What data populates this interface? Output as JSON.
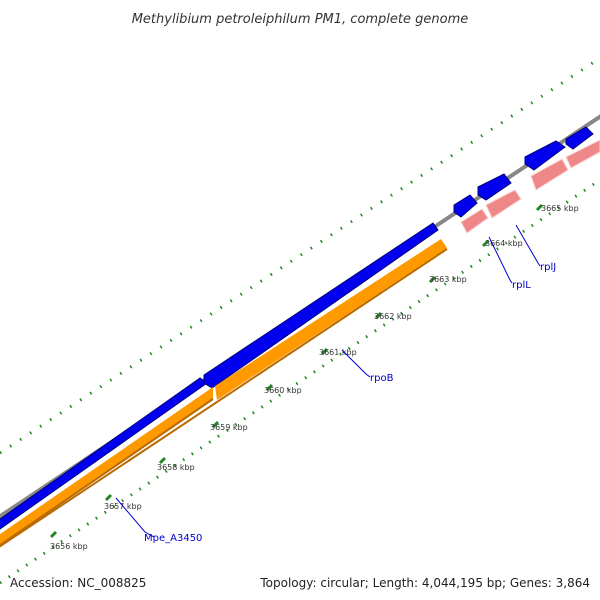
{
  "title": "Methylibium petroleiphilum PM1, complete genome",
  "accession": "Accession: NC_008825",
  "summary": "Topology: circular; Length: 4,044,195 bp; Genes: 3,864",
  "colors": {
    "backbone": "#888888",
    "cds": "#0000ee",
    "gene": "#ff9900",
    "rrna_trna": "#ee8888",
    "ticks": "#228822",
    "gene_label": "#0000cc"
  },
  "ticks": [
    "3656 kbp",
    "3657 kbp",
    "3658 kbp",
    "3659 kbp",
    "3660 kbp",
    "3661 kbp",
    "3662 kbp",
    "3663 kbp",
    "3664 kbp",
    "3665 kbp"
  ],
  "gene_labels": [
    "Mpe_A3450",
    "rpoB",
    "rplL",
    "rplJ"
  ]
}
